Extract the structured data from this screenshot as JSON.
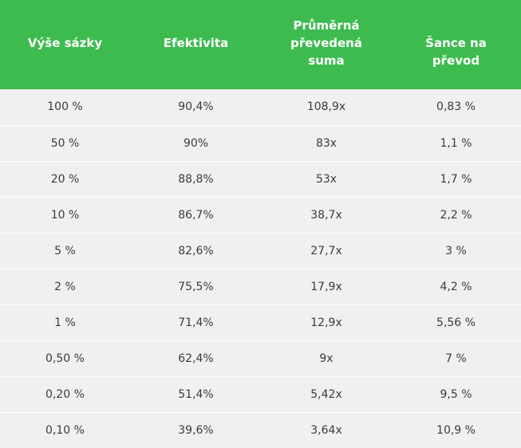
{
  "header": {
    "col1": "Výše sázky",
    "col2": "Efektivita",
    "col3_line1": "Průměrná",
    "col3_line2": "převedená",
    "col3_line3": "suma",
    "col4_line1": "Šance na",
    "col4_line2": "převod"
  },
  "rows": [
    {
      "bet": "100 %",
      "efficiency": "90,4%",
      "average": "108,9x",
      "chance": "0,83 %"
    },
    {
      "bet": "50 %",
      "efficiency": "90%",
      "average": "83x",
      "chance": "1,1 %"
    },
    {
      "bet": "20 %",
      "efficiency": "88,8%",
      "average": "53x",
      "chance": "1,7 %"
    },
    {
      "bet": "10 %",
      "efficiency": "86,7%",
      "average": "38,7x",
      "chance": "2,2 %"
    },
    {
      "bet": "5 %",
      "efficiency": "82,6%",
      "average": "27,7x",
      "chance": "3 %"
    },
    {
      "bet": "2 %",
      "efficiency": "75,5%",
      "average": "17,9x",
      "chance": "4,2 %"
    },
    {
      "bet": "1 %",
      "efficiency": "71,4%",
      "average": "12,9x",
      "chance": "5,56 %"
    },
    {
      "bet": "0,50 %",
      "efficiency": "62,4%",
      "average": "9x",
      "chance": "7 %"
    },
    {
      "bet": "0,20 %",
      "efficiency": "51,4%",
      "average": "5,42x",
      "chance": "9,5 %"
    },
    {
      "bet": "0,10 %",
      "efficiency": "39,6%",
      "average": "3,64x",
      "chance": "10,9 %"
    }
  ],
  "colors": {
    "header_bg": "#3dbb4f",
    "header_text": "#ffffff",
    "row_bg": "#f1f0f1",
    "cell_text": "#3b3b3b"
  }
}
